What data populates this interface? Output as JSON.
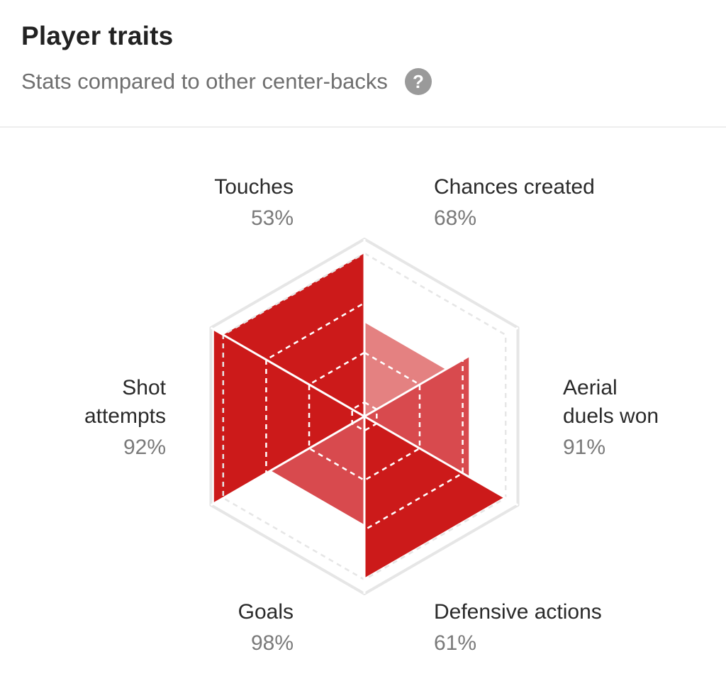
{
  "header": {
    "title": "Player traits",
    "subtitle": "Stats compared to other center-backs",
    "help_glyph": "?"
  },
  "chart_data": {
    "type": "radar",
    "title": "",
    "max": 100,
    "categories": [
      "Touches",
      "Chances created",
      "Aerial duels won",
      "Defensive actions",
      "Goals",
      "Shot attempts"
    ],
    "values": [
      53,
      68,
      91,
      61,
      98,
      92
    ],
    "value_labels": [
      "53%",
      "68%",
      "91%",
      "61%",
      "98%",
      "92%"
    ],
    "label_lines": [
      [
        "Touches"
      ],
      [
        "Chances created"
      ],
      [
        "Aerial",
        "duels won"
      ],
      [
        "Defensive actions"
      ],
      [
        "Goals"
      ],
      [
        "Shot",
        "attempts"
      ]
    ],
    "colors": {
      "high": "#cc1a1a",
      "mid": "#d84a4e",
      "low": "#e48181",
      "grid": "#e6e6e6",
      "divider": "#ffffff"
    }
  }
}
